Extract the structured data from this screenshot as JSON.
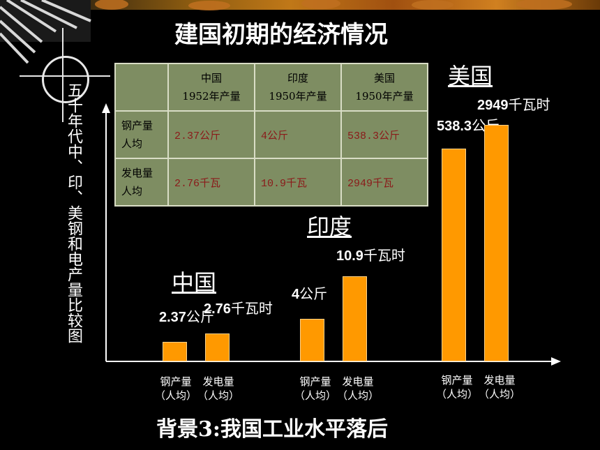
{
  "title": "建国初期的经济情况",
  "vertical_title": "五十年代中、印、美钢和电产量比较图",
  "footer": "背景3:我国工业水平落后",
  "table": {
    "header": [
      "",
      "中国\n1952年产量",
      "印度\n1950年产量",
      "美国\n1950年产量"
    ],
    "rows": [
      {
        "label": "钢产量\n人均",
        "values": [
          "2.37公斤",
          "4公斤",
          "538.3公斤"
        ]
      },
      {
        "label": "发电量\n人均",
        "values": [
          "2.76千瓦",
          "10.9千瓦",
          "2949千瓦"
        ]
      }
    ]
  },
  "chart_data": {
    "type": "bar",
    "groups": [
      {
        "name": "中国",
        "steel_label": "2.37",
        "steel_unit": "公斤",
        "power_label": "2.76",
        "power_unit": "千瓦时",
        "steel": 2.37,
        "power": 2.76
      },
      {
        "name": "印度",
        "steel_label": "4",
        "steel_unit": "公斤",
        "power_label": "10.9",
        "power_unit": "千瓦时",
        "steel": 4,
        "power": 10.9
      },
      {
        "name": "美国",
        "steel_label": "538.3",
        "steel_unit": "公斤",
        "power_label": "2949",
        "power_unit": "千瓦时",
        "steel": 538.3,
        "power": 2949
      }
    ],
    "bar_labels": {
      "steel": "钢产量\n（人均）",
      "power": "发电量\n（人均）"
    },
    "bar_color": "#ff9900"
  }
}
